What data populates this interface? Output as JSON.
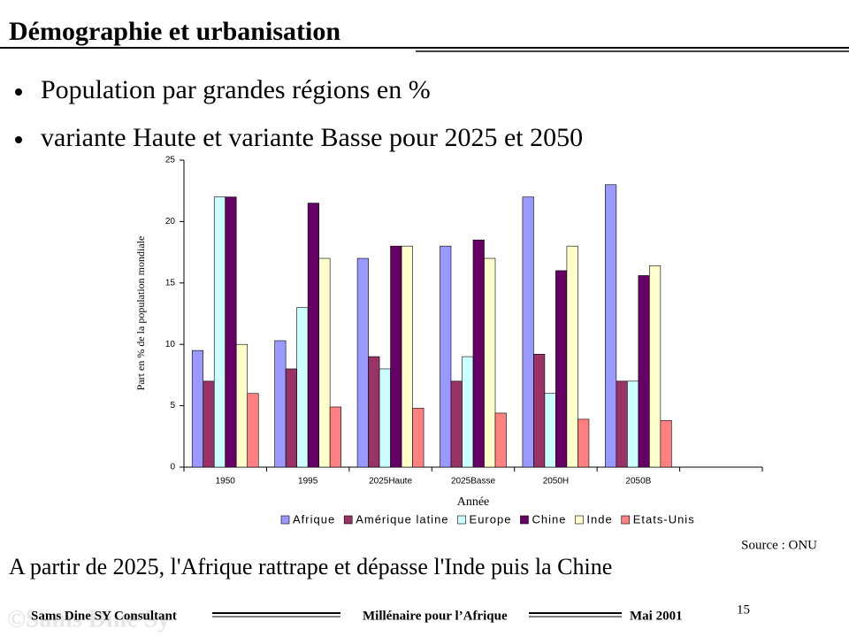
{
  "slide": {
    "title": "Démographie et urbanisation",
    "bullets": [
      "Population par grandes régions en %",
      "variante Haute et variante Basse pour 2025 et 2050"
    ],
    "source": "Source : ONU",
    "conclusion": "A partir de 2025, l'Afrique rattrape et dépasse l'Inde puis la Chine",
    "footer": {
      "left": "Sams Dine SY Consultant",
      "center": "Millénaire pour l’Afrique",
      "right": "Mai 2001",
      "page": "15",
      "watermark": "©Sams Dine Sy"
    }
  },
  "chart_data": {
    "type": "bar",
    "xlabel": "Année",
    "ylabel": "Part en % de la population mondiale",
    "categories": [
      "1950",
      "1995",
      "2025Haute",
      "2025Basse",
      "2050H",
      "2050B",
      null
    ],
    "series": [
      {
        "name": "Afrique",
        "color": "#9999ff",
        "values": [
          9.5,
          10.3,
          17,
          18,
          22,
          23,
          null
        ]
      },
      {
        "name": "Amérique latine",
        "color": "#993366",
        "values": [
          7,
          8,
          9,
          7,
          9.2,
          7,
          null
        ]
      },
      {
        "name": "Europe",
        "color": "#ccffff",
        "values": [
          22,
          13,
          8,
          9,
          6,
          7,
          null
        ]
      },
      {
        "name": "Chine",
        "color": "#660066",
        "values": [
          22,
          21.5,
          18,
          18.5,
          16,
          15.6,
          null
        ]
      },
      {
        "name": "Inde",
        "color": "#ffffcc",
        "values": [
          10,
          17,
          18,
          17,
          18,
          16.4,
          null
        ]
      },
      {
        "name": "Etats-Unis",
        "color": "#ff8080",
        "values": [
          6,
          4.9,
          4.8,
          4.4,
          3.9,
          3.8,
          null
        ]
      }
    ],
    "ylim": [
      0,
      25
    ],
    "yticks": [
      0,
      5,
      10,
      15,
      20,
      25
    ],
    "legend": "bottom"
  }
}
